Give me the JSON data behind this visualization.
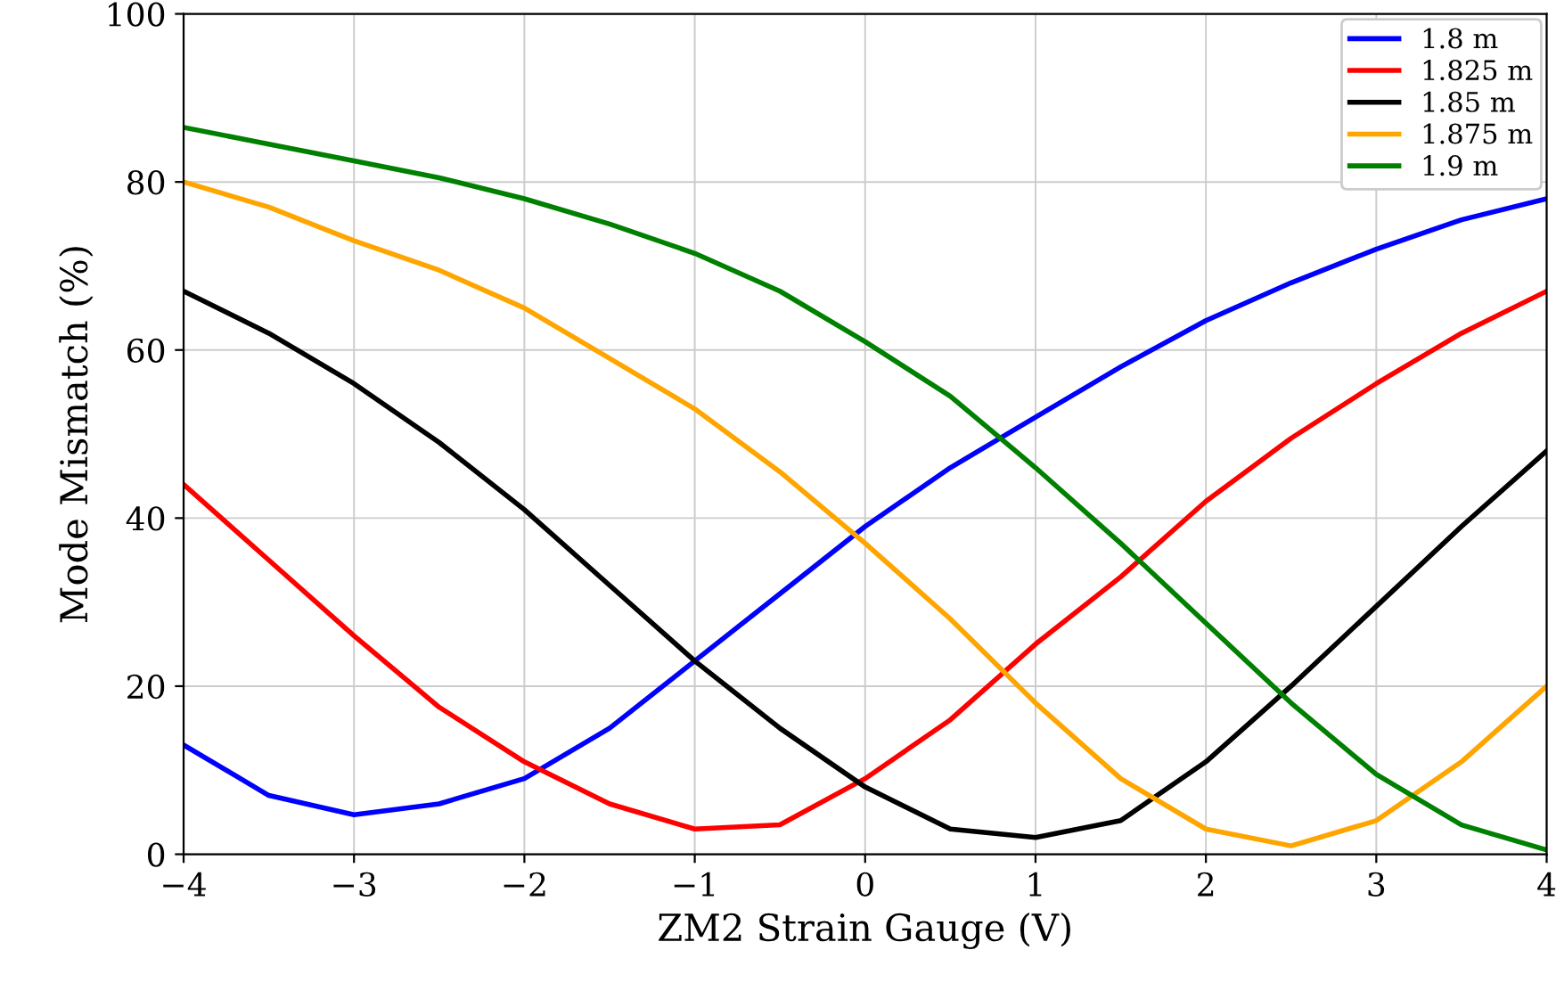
{
  "chart_data": {
    "type": "line",
    "xlabel": "ZM2 Strain Gauge (V)",
    "ylabel": "Mode Mismatch (%)",
    "x": [
      -4,
      -3.5,
      -3,
      -2.5,
      -2,
      -1.5,
      -1,
      -0.5,
      0,
      0.5,
      1,
      1.5,
      2,
      2.5,
      3,
      3.5,
      4
    ],
    "series": [
      {
        "name": "1.8 m",
        "color": "#0000ff",
        "values": [
          13,
          7,
          4.7,
          6,
          9,
          15,
          23,
          31,
          39,
          46,
          52,
          58,
          63.5,
          68,
          72,
          75.5,
          78
        ]
      },
      {
        "name": "1.825 m",
        "color": "#ff0000",
        "values": [
          44,
          35,
          26,
          17.5,
          11,
          6,
          3,
          3.5,
          9,
          16,
          25,
          33,
          42,
          49.5,
          56,
          62,
          67
        ]
      },
      {
        "name": "1.85 m",
        "color": "#000000",
        "values": [
          67,
          62,
          56,
          49,
          41,
          32,
          23,
          15,
          8,
          3,
          2,
          4,
          11,
          20,
          29.5,
          39,
          48
        ]
      },
      {
        "name": "1.875 m",
        "color": "#ffa500",
        "values": [
          80,
          77,
          73,
          69.5,
          65,
          59,
          53,
          45.5,
          37,
          28,
          18,
          9,
          3,
          1,
          4,
          11,
          20
        ]
      },
      {
        "name": "1.9 m",
        "color": "#008000",
        "values": [
          86.5,
          84.5,
          82.5,
          80.5,
          78,
          75,
          71.5,
          67,
          61,
          54.5,
          46,
          37,
          27.5,
          18,
          9.5,
          3.5,
          0.5
        ]
      }
    ],
    "xlim": [
      -4,
      4
    ],
    "xticks": [
      {
        "value": -4,
        "label": "−4"
      },
      {
        "value": -3,
        "label": "−3"
      },
      {
        "value": -2,
        "label": "−2"
      },
      {
        "value": -1,
        "label": "−1"
      },
      0,
      1,
      2,
      3,
      4
    ],
    "ylim": [
      0,
      100
    ],
    "yticks": [
      0,
      20,
      40,
      60,
      80,
      100
    ],
    "grid": true,
    "legend": "top right",
    "line_style": "solid",
    "marker": "none"
  }
}
